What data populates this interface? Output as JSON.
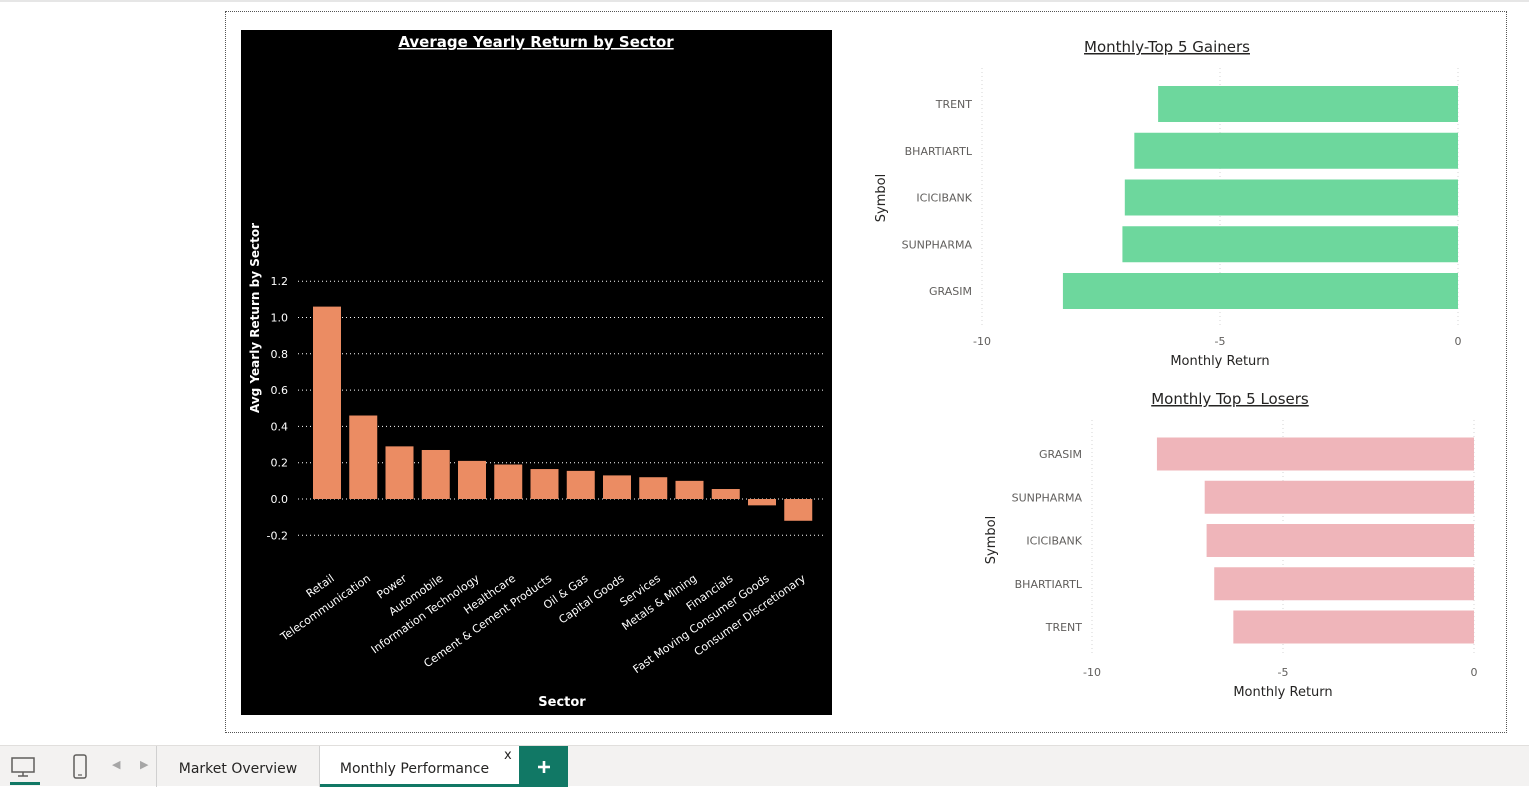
{
  "report": {
    "tabs": [
      {
        "label": "Market Overview"
      },
      {
        "label": "Monthly Performance",
        "close_label": "x"
      }
    ],
    "add_tab_label": "+",
    "icons": {
      "desktop": "desktop-view-icon",
      "mobile": "mobile-view-icon",
      "prev": "chevron-left-icon",
      "next": "chevron-right-icon",
      "add": "plus-icon"
    }
  },
  "colors": {
    "bar_sector": "#EB8C63",
    "bar_gainers": "#6DD79D",
    "bar_losers": "#EFB5BA",
    "accent": "#117865",
    "sector_bg": "#000000"
  },
  "chart_data": [
    {
      "id": "sector",
      "type": "bar",
      "title": "Average Yearly Return by Sector",
      "xlabel": "Sector",
      "ylabel": "Avg Yearly Return by Sector",
      "ylim": [
        -0.2,
        1.2
      ],
      "yticks": [
        "1.2",
        "1.0",
        "0.8",
        "0.6",
        "0.4",
        "0.2",
        "0.0",
        "-0.2"
      ],
      "ytick_values": [
        1.2,
        1.0,
        0.8,
        0.6,
        0.4,
        0.2,
        0.0,
        -0.2
      ],
      "grid": true,
      "categories": [
        "Retail",
        "Telecommunication",
        "Power",
        "Automobile",
        "Information Technology",
        "Healthcare",
        "Cement & Cement Products",
        "Oil & Gas",
        "Capital Goods",
        "Services",
        "Metals & Mining",
        "Financials",
        "Fast Moving Consumer Goods",
        "Consumer Discretionary"
      ],
      "values": [
        1.06,
        0.46,
        0.29,
        0.27,
        0.21,
        0.19,
        0.165,
        0.155,
        0.13,
        0.12,
        0.1,
        0.055,
        -0.035,
        -0.12
      ]
    },
    {
      "id": "gainers",
      "type": "bar",
      "orientation": "horizontal",
      "title": "Monthly-Top 5 Gainers",
      "xlabel": "Monthly Return",
      "ylabel": "Symbol",
      "xlim": [
        -10,
        0
      ],
      "xticks": [
        "-10",
        "-5",
        "0"
      ],
      "xtick_values": [
        -10,
        -5,
        0
      ],
      "grid": true,
      "categories": [
        "TRENT",
        "BHARTIARTL",
        "ICICIBANK",
        "SUNPHARMA",
        "GRASIM"
      ],
      "values": [
        -6.3,
        -6.8,
        -7.0,
        -7.05,
        -8.3
      ]
    },
    {
      "id": "losers",
      "type": "bar",
      "orientation": "horizontal",
      "title": "Monthly Top 5 Losers",
      "xlabel": "Monthly Return",
      "ylabel": "Symbol",
      "xlim": [
        -10,
        0
      ],
      "xticks": [
        "-10",
        "-5",
        "0"
      ],
      "xtick_values": [
        -10,
        -5,
        0
      ],
      "grid": true,
      "categories": [
        "GRASIM",
        "SUNPHARMA",
        "ICICIBANK",
        "BHARTIARTL",
        "TRENT"
      ],
      "values": [
        -8.3,
        -7.05,
        -7.0,
        -6.8,
        -6.3
      ]
    }
  ]
}
